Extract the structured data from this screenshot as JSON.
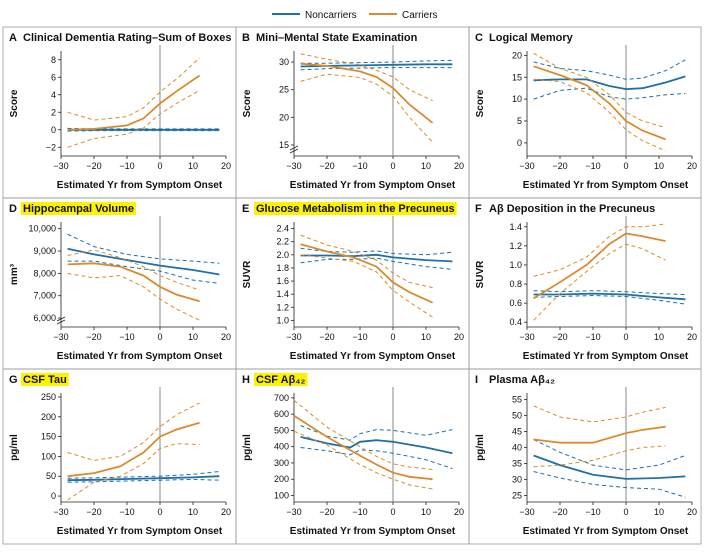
{
  "legend": {
    "noncarriers": "Noncarriers",
    "carriers": "Carriers"
  },
  "colors": {
    "noncarriers": "#1f6fa8",
    "carriers": "#d98c2e",
    "highlight": "#fff200",
    "panel_border": "#999999",
    "vline": "#888888"
  },
  "chart_data": [
    {
      "letter": "A",
      "title": "Clinical Dementia Rating–Sum of Boxes",
      "highlight": false,
      "type": "line",
      "xlabel": "Estimated Yr from Symptom Onset",
      "ylabel": "Score",
      "xlim": [
        -30,
        20
      ],
      "xticks": [
        "−30",
        "−20",
        "−10",
        "0",
        "10",
        "20"
      ],
      "xtick_vals": [
        -30,
        -20,
        -10,
        0,
        10,
        20
      ],
      "ylim": [
        -3,
        9
      ],
      "yticks": [
        "−2",
        "0",
        "2",
        "4",
        "6",
        "8"
      ],
      "ytick_vals": [
        -2,
        0,
        2,
        4,
        6,
        8
      ],
      "ybreak": false,
      "series": [
        {
          "name": "Noncarriers",
          "x": [
            -28,
            -20,
            -10,
            0,
            10,
            18
          ],
          "y": [
            0,
            0,
            0,
            0,
            0,
            0
          ],
          "lower": [
            -0.15,
            -0.1,
            -0.1,
            -0.1,
            -0.1,
            -0.1
          ],
          "upper": [
            0.15,
            0.1,
            0.1,
            0.1,
            0.1,
            0.1
          ]
        },
        {
          "name": "Carriers",
          "x": [
            -28,
            -20,
            -10,
            -5,
            0,
            5,
            12
          ],
          "y": [
            0,
            0.1,
            0.5,
            1.3,
            3.0,
            4.4,
            6.2
          ],
          "lower": [
            -2.0,
            -1.0,
            -0.5,
            0.2,
            1.8,
            3.0,
            4.5
          ],
          "upper": [
            2.0,
            1.1,
            1.5,
            2.5,
            4.3,
            5.8,
            8.2
          ]
        }
      ]
    },
    {
      "letter": "B",
      "title": "Mini–Mental State Examination",
      "highlight": false,
      "type": "line",
      "xlabel": "Estimated Yr from Symptom Onset",
      "ylabel": "Score",
      "xlim": [
        -30,
        20
      ],
      "xticks": [
        "−30",
        "−20",
        "−10",
        "0",
        "10",
        "20"
      ],
      "xtick_vals": [
        -30,
        -20,
        -10,
        0,
        10,
        20
      ],
      "ylim": [
        13,
        32
      ],
      "yticks": [
        "15",
        "20",
        "25",
        "30"
      ],
      "ytick_vals": [
        15,
        20,
        25,
        30
      ],
      "ybreak": true,
      "series": [
        {
          "name": "Noncarriers",
          "x": [
            -28,
            -20,
            -10,
            0,
            10,
            18
          ],
          "y": [
            29.2,
            29.3,
            29.4,
            29.5,
            29.6,
            29.6
          ],
          "lower": [
            28.6,
            28.8,
            28.9,
            29.0,
            29.0,
            29.0
          ],
          "upper": [
            29.8,
            29.8,
            29.9,
            30.0,
            30.2,
            30.3
          ]
        },
        {
          "name": "Carriers",
          "x": [
            -28,
            -20,
            -10,
            -5,
            0,
            5,
            12
          ],
          "y": [
            29.7,
            29.3,
            28.3,
            27.3,
            25.3,
            22.3,
            19.0
          ],
          "lower": [
            26.5,
            27.8,
            27.2,
            26.0,
            23.8,
            20.0,
            15.5
          ],
          "upper": [
            31.5,
            30.5,
            29.5,
            28.5,
            27.3,
            25.0,
            23.0
          ]
        }
      ]
    },
    {
      "letter": "C",
      "title": "Logical Memory",
      "highlight": false,
      "type": "line",
      "xlabel": "Estimated Yr from Symptom Onset",
      "ylabel": "Score",
      "xlim": [
        -30,
        20
      ],
      "xticks": [
        "−30",
        "−20",
        "−10",
        "0",
        "10",
        "20"
      ],
      "xtick_vals": [
        -30,
        -20,
        -10,
        0,
        10,
        20
      ],
      "ylim": [
        -3,
        21
      ],
      "yticks": [
        "0",
        "5",
        "10",
        "15",
        "20"
      ],
      "ytick_vals": [
        0,
        5,
        10,
        15,
        20
      ],
      "ybreak": false,
      "series": [
        {
          "name": "Noncarriers",
          "x": [
            -28,
            -20,
            -12,
            -5,
            0,
            5,
            12,
            18
          ],
          "y": [
            14.3,
            14.5,
            14.5,
            13.0,
            12.3,
            12.5,
            13.8,
            15.2
          ],
          "lower": [
            10.0,
            12.0,
            12.5,
            10.5,
            10.0,
            10.3,
            11.0,
            11.3
          ],
          "upper": [
            18.5,
            17.0,
            16.5,
            15.5,
            14.5,
            14.8,
            16.5,
            19.0
          ]
        },
        {
          "name": "Carriers",
          "x": [
            -28,
            -20,
            -12,
            -5,
            0,
            5,
            12
          ],
          "y": [
            17.5,
            15.5,
            13.2,
            9.0,
            5.0,
            2.8,
            0.8
          ],
          "lower": [
            14.5,
            14.0,
            11.5,
            7.0,
            3.0,
            0.5,
            -1.8
          ],
          "upper": [
            20.5,
            17.0,
            15.0,
            11.0,
            7.0,
            5.0,
            3.5
          ]
        }
      ]
    },
    {
      "letter": "D",
      "title": "Hippocampal Volume",
      "highlight": true,
      "type": "line",
      "xlabel": "Estimated Yr from Symptom Onset",
      "ylabel": "mm³",
      "xlim": [
        -30,
        20
      ],
      "xticks": [
        "−30",
        "−20",
        "−10",
        "0",
        "10",
        "20"
      ],
      "xtick_vals": [
        -30,
        -20,
        -10,
        0,
        10,
        20
      ],
      "ylim": [
        5600,
        10300
      ],
      "yticks": [
        "6,000",
        "7,000",
        "8,000",
        "9,000",
        "10,000"
      ],
      "ytick_vals": [
        6000,
        7000,
        8000,
        9000,
        10000
      ],
      "ybreak": true,
      "series": [
        {
          "name": "Noncarriers",
          "x": [
            -28,
            -20,
            -10,
            0,
            10,
            18
          ],
          "y": [
            9100,
            8850,
            8600,
            8350,
            8150,
            7950
          ],
          "lower": [
            8550,
            8550,
            8300,
            8100,
            7700,
            7550
          ],
          "upper": [
            9750,
            9200,
            8850,
            8650,
            8550,
            8450
          ]
        },
        {
          "name": "Carriers",
          "x": [
            -28,
            -20,
            -12,
            -5,
            0,
            5,
            12
          ],
          "y": [
            8400,
            8450,
            8300,
            7900,
            7400,
            7050,
            6750
          ],
          "lower": [
            8000,
            7800,
            7900,
            7400,
            6850,
            6400,
            5900
          ],
          "upper": [
            8800,
            9050,
            8700,
            8300,
            7900,
            7600,
            7250
          ]
        }
      ]
    },
    {
      "letter": "E",
      "title": "Glucose Metabolism in the Precuneus",
      "highlight": true,
      "type": "line",
      "xlabel": "Estimated Yr from Symptom Onset",
      "ylabel": "SUVR",
      "xlim": [
        -30,
        20
      ],
      "xticks": [
        "−30",
        "−20",
        "−10",
        "0",
        "10",
        "20"
      ],
      "xtick_vals": [
        -30,
        -20,
        -10,
        0,
        10,
        20
      ],
      "ylim": [
        0.9,
        2.5
      ],
      "yticks": [
        "1.0",
        "1.2",
        "1.4",
        "1.6",
        "1.8",
        "2.0",
        "2.2",
        "2.4"
      ],
      "ytick_vals": [
        1.0,
        1.2,
        1.4,
        1.6,
        1.8,
        2.0,
        2.2,
        2.4
      ],
      "ybreak": false,
      "series": [
        {
          "name": "Noncarriers",
          "x": [
            -28,
            -20,
            -12,
            -5,
            0,
            10,
            18
          ],
          "y": [
            1.99,
            1.99,
            1.98,
            2.0,
            1.96,
            1.92,
            1.9
          ],
          "lower": [
            1.88,
            1.93,
            1.93,
            1.95,
            1.9,
            1.82,
            1.78
          ],
          "upper": [
            2.1,
            2.05,
            2.04,
            2.06,
            2.02,
            2.0,
            2.04
          ]
        },
        {
          "name": "Carriers",
          "x": [
            -28,
            -20,
            -12,
            -5,
            0,
            5,
            12
          ],
          "y": [
            2.16,
            2.05,
            1.96,
            1.82,
            1.58,
            1.43,
            1.27
          ],
          "lower": [
            2.0,
            1.95,
            1.9,
            1.74,
            1.46,
            1.28,
            1.05
          ],
          "upper": [
            2.3,
            2.15,
            2.05,
            1.92,
            1.72,
            1.58,
            1.5
          ]
        }
      ]
    },
    {
      "letter": "F",
      "title": "Aβ Deposition in the Precuneus",
      "highlight": false,
      "type": "line",
      "xlabel": "Estimated Yr from Symptom Onset",
      "ylabel": "SUVR",
      "xlim": [
        -30,
        20
      ],
      "xticks": [
        "−30",
        "−20",
        "−10",
        "0",
        "10",
        "20"
      ],
      "xtick_vals": [
        -30,
        -20,
        -10,
        0,
        10,
        20
      ],
      "ylim": [
        0.35,
        1.45
      ],
      "yticks": [
        "0.4",
        "0.6",
        "0.8",
        "1.0",
        "1.2",
        "1.4"
      ],
      "ytick_vals": [
        0.4,
        0.6,
        0.8,
        1.0,
        1.2,
        1.4
      ],
      "ybreak": false,
      "series": [
        {
          "name": "Noncarriers",
          "x": [
            -28,
            -20,
            -10,
            0,
            10,
            18
          ],
          "y": [
            0.69,
            0.69,
            0.7,
            0.69,
            0.66,
            0.64
          ],
          "lower": [
            0.66,
            0.67,
            0.68,
            0.67,
            0.63,
            0.59
          ],
          "upper": [
            0.73,
            0.72,
            0.73,
            0.72,
            0.7,
            0.69
          ]
        },
        {
          "name": "Carriers",
          "x": [
            -28,
            -20,
            -12,
            -5,
            0,
            5,
            12
          ],
          "y": [
            0.65,
            0.82,
            1.0,
            1.22,
            1.33,
            1.3,
            1.25
          ],
          "lower": [
            0.42,
            0.7,
            0.93,
            1.12,
            1.22,
            1.17,
            1.05
          ],
          "upper": [
            0.88,
            0.95,
            1.08,
            1.3,
            1.4,
            1.4,
            1.43
          ]
        }
      ]
    },
    {
      "letter": "G",
      "title": "CSF Tau",
      "highlight": true,
      "type": "line",
      "xlabel": "Estimated Yr from Symptom Onset",
      "ylabel": "pg/ml",
      "xlim": [
        -30,
        20
      ],
      "xticks": [
        "−30",
        "−20",
        "−10",
        "0",
        "10",
        "20"
      ],
      "xtick_vals": [
        -30,
        -20,
        -10,
        0,
        10,
        20
      ],
      "ylim": [
        -15,
        260
      ],
      "yticks": [
        "0",
        "50",
        "100",
        "150",
        "200",
        "250"
      ],
      "ytick_vals": [
        0,
        50,
        100,
        150,
        200,
        250
      ],
      "ybreak": false,
      "series": [
        {
          "name": "Noncarriers",
          "x": [
            -28,
            -20,
            -10,
            0,
            10,
            18
          ],
          "y": [
            40,
            41,
            43,
            45,
            47,
            50
          ],
          "lower": [
            35,
            36,
            38,
            40,
            42,
            40
          ],
          "upper": [
            45,
            46,
            48,
            50,
            55,
            62
          ]
        },
        {
          "name": "Carriers",
          "x": [
            -28,
            -20,
            -12,
            -5,
            0,
            5,
            12
          ],
          "y": [
            50,
            58,
            75,
            110,
            150,
            168,
            185
          ],
          "lower": [
            -10,
            35,
            50,
            82,
            120,
            132,
            130
          ],
          "upper": [
            110,
            90,
            100,
            135,
            175,
            205,
            235
          ]
        }
      ]
    },
    {
      "letter": "H",
      "title": "CSF Aβ₄₂",
      "highlight": true,
      "type": "line",
      "xlabel": "Estimated Yr from Symptom Onset",
      "ylabel": "pg/ml",
      "xlim": [
        -30,
        20
      ],
      "xticks": [
        "−30",
        "−20",
        "−10",
        "0",
        "10",
        "20"
      ],
      "xtick_vals": [
        -30,
        -20,
        -10,
        0,
        10,
        20
      ],
      "ylim": [
        60,
        730
      ],
      "yticks": [
        "100",
        "200",
        "300",
        "400",
        "500",
        "600",
        "700"
      ],
      "ytick_vals": [
        100,
        200,
        300,
        400,
        500,
        600,
        700
      ],
      "ybreak": false,
      "series": [
        {
          "name": "Noncarriers",
          "x": [
            -28,
            -20,
            -13,
            -10,
            -5,
            0,
            10,
            18
          ],
          "y": [
            460,
            420,
            395,
            430,
            440,
            430,
            395,
            360
          ],
          "lower": [
            395,
            375,
            350,
            380,
            375,
            360,
            320,
            265
          ],
          "upper": [
            530,
            465,
            440,
            480,
            505,
            500,
            470,
            505
          ]
        },
        {
          "name": "Carriers",
          "x": [
            -30,
            -20,
            -10,
            -5,
            0,
            5,
            12
          ],
          "y": [
            590,
            460,
            345,
            290,
            240,
            215,
            200
          ],
          "lower": [
            495,
            410,
            290,
            240,
            200,
            165,
            140
          ],
          "upper": [
            685,
            520,
            400,
            340,
            295,
            275,
            260
          ]
        }
      ]
    },
    {
      "letter": "I",
      "title": "Plasma Aβ₄₂",
      "highlight": false,
      "type": "line",
      "xlabel": "Estimated Yr from Symptom Onset",
      "ylabel": "pg/ml",
      "xlim": [
        -30,
        20
      ],
      "xticks": [
        "−30",
        "−20",
        "−10",
        "0",
        "10",
        "20"
      ],
      "xtick_vals": [
        -30,
        -20,
        -10,
        0,
        10,
        20
      ],
      "ylim": [
        23,
        57
      ],
      "yticks": [
        "25",
        "30",
        "35",
        "40",
        "45",
        "50",
        "55"
      ],
      "ytick_vals": [
        25,
        30,
        35,
        40,
        45,
        50,
        55
      ],
      "ybreak": false,
      "series": [
        {
          "name": "Noncarriers",
          "x": [
            -28,
            -20,
            -10,
            0,
            10,
            18
          ],
          "y": [
            37.5,
            34.5,
            31.5,
            30.2,
            30.5,
            31.0
          ],
          "lower": [
            32.5,
            30.5,
            28.5,
            27.5,
            27.0,
            24.5
          ],
          "upper": [
            42.5,
            38.5,
            34.5,
            33.0,
            34.5,
            37.5
          ]
        },
        {
          "name": "Carriers",
          "x": [
            -28,
            -20,
            -10,
            0,
            5,
            12
          ],
          "y": [
            42.5,
            41.5,
            41.5,
            44.5,
            45.5,
            46.5
          ],
          "lower": [
            34.0,
            34.5,
            36.0,
            39.0,
            40.0,
            40.5
          ],
          "upper": [
            53.0,
            49.5,
            48.0,
            49.5,
            51.0,
            52.5
          ]
        }
      ]
    }
  ]
}
